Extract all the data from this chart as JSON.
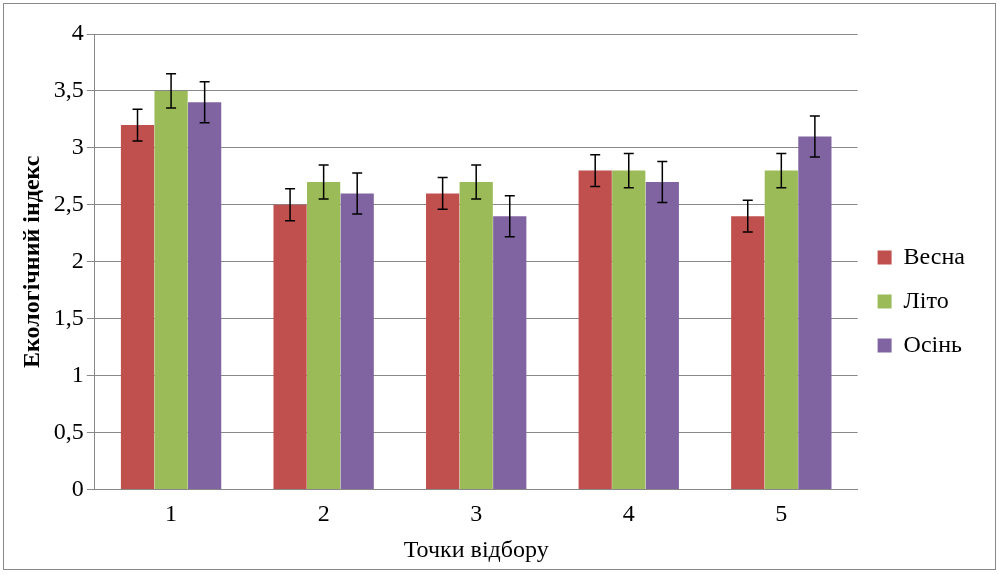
{
  "chart_data": {
    "type": "bar",
    "xlabel": "Точки відбору",
    "ylabel": "Екологічний індекс",
    "categories": [
      "1",
      "2",
      "3",
      "4",
      "5"
    ],
    "series": [
      {
        "name": "Весна",
        "color": "#c0504d",
        "values": [
          3.2,
          2.5,
          2.6,
          2.8,
          2.4
        ],
        "errors": [
          0.14,
          0.14,
          0.14,
          0.14,
          0.14
        ]
      },
      {
        "name": "Літо",
        "color": "#9bbb59",
        "values": [
          3.5,
          2.7,
          2.7,
          2.8,
          2.8
        ],
        "errors": [
          0.15,
          0.15,
          0.15,
          0.15,
          0.15
        ]
      },
      {
        "name": "Осінь",
        "color": "#8064a2",
        "values": [
          3.4,
          2.6,
          2.4,
          2.7,
          3.1
        ],
        "errors": [
          0.18,
          0.18,
          0.18,
          0.18,
          0.18
        ]
      }
    ],
    "ylim": [
      0,
      4
    ],
    "yticks": [
      {
        "value": 0,
        "label": "0"
      },
      {
        "value": 0.5,
        "label": "0,5"
      },
      {
        "value": 1,
        "label": "1"
      },
      {
        "value": 1.5,
        "label": "1,5"
      },
      {
        "value": 2,
        "label": "2"
      },
      {
        "value": 2.5,
        "label": "2,5"
      },
      {
        "value": 3,
        "label": "3"
      },
      {
        "value": 3.5,
        "label": "3,5"
      },
      {
        "value": 4,
        "label": "4"
      }
    ],
    "grid": "y",
    "legend": "right"
  }
}
